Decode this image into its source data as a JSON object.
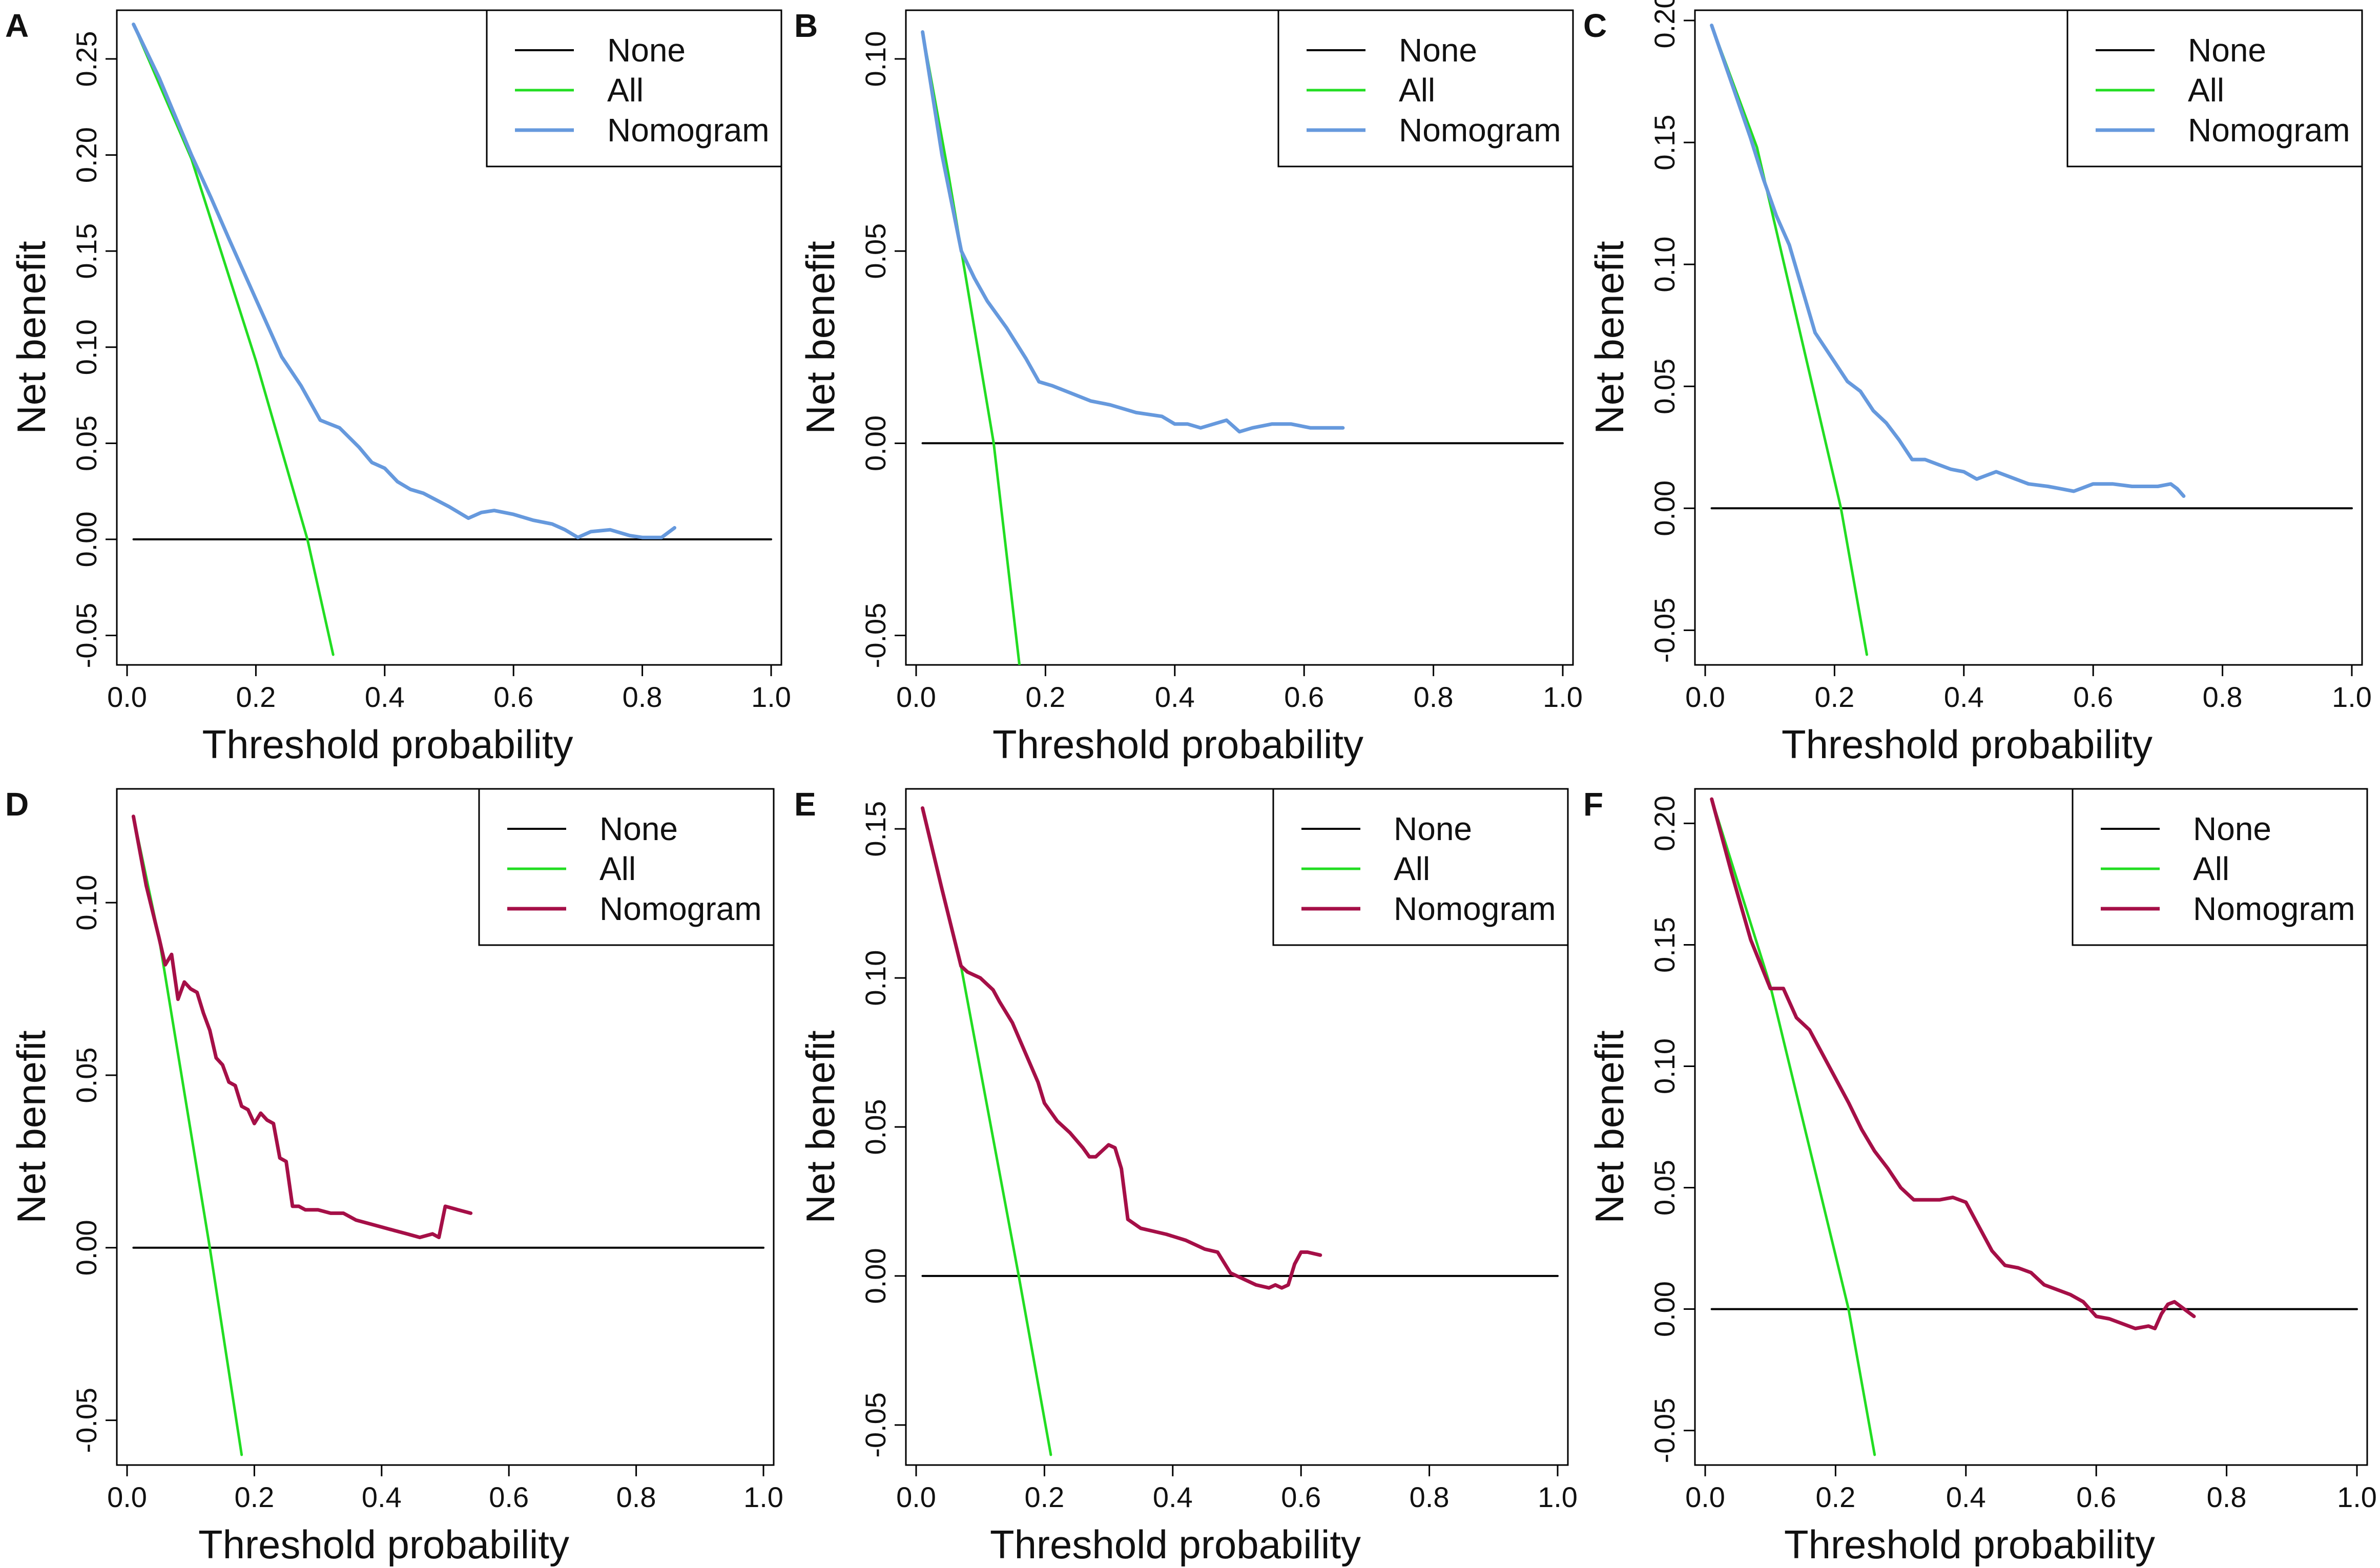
{
  "figure": {
    "none_color": "#000000",
    "all_color": "#22dd22",
    "blue_color": "#6699dd",
    "crimson_color": "#a50f47"
  },
  "chart_data": [
    {
      "panel": "A",
      "type": "line",
      "xlabel": "Threshold probability",
      "ylabel": "Net benefit",
      "xlim": [
        0,
        1
      ],
      "ylim": [
        -0.06,
        0.27
      ],
      "xticks": [
        "0.0",
        "0.2",
        "0.4",
        "0.6",
        "0.8",
        "1.0"
      ],
      "xtick_values": [
        0,
        0.2,
        0.4,
        0.6,
        0.8,
        1.0
      ],
      "yticks": [
        "-0.05",
        "0.00",
        "0.05",
        "0.10",
        "0.15",
        "0.20",
        "0.25"
      ],
      "ytick_values": [
        -0.05,
        0,
        0.05,
        0.1,
        0.15,
        0.2,
        0.25
      ],
      "legend": [
        "None",
        "All",
        "Nomogram"
      ],
      "legend_position": "top-right",
      "nomogram_color": "blue",
      "series": [
        {
          "name": "None",
          "x": [
            0.01,
            1.0
          ],
          "y": [
            0,
            0
          ]
        },
        {
          "name": "All",
          "x": [
            0.01,
            0.1,
            0.2,
            0.28,
            0.32
          ],
          "y": [
            0.268,
            0.198,
            0.093,
            0,
            -0.06
          ]
        },
        {
          "name": "Nomogram",
          "x": [
            0.01,
            0.05,
            0.1,
            0.13,
            0.16,
            0.2,
            0.24,
            0.27,
            0.3,
            0.33,
            0.36,
            0.38,
            0.4,
            0.42,
            0.44,
            0.46,
            0.5,
            0.53,
            0.55,
            0.57,
            0.6,
            0.63,
            0.66,
            0.68,
            0.7,
            0.72,
            0.75,
            0.78,
            0.8,
            0.83,
            0.85
          ],
          "y": [
            0.268,
            0.24,
            0.2,
            0.178,
            0.155,
            0.125,
            0.095,
            0.08,
            0.062,
            0.058,
            0.048,
            0.04,
            0.037,
            0.03,
            0.026,
            0.024,
            0.017,
            0.011,
            0.014,
            0.015,
            0.013,
            0.01,
            0.008,
            0.005,
            0.001,
            0.004,
            0.005,
            0.002,
            0.001,
            0.001,
            0.006
          ]
        }
      ]
    },
    {
      "panel": "B",
      "type": "line",
      "xlabel": "Threshold probability",
      "ylabel": "Net benefit",
      "xlim": [
        0,
        1
      ],
      "ylim": [
        -0.055,
        0.11
      ],
      "xticks": [
        "0.0",
        "0.2",
        "0.4",
        "0.6",
        "0.8",
        "1.0"
      ],
      "xtick_values": [
        0,
        0.2,
        0.4,
        0.6,
        0.8,
        1.0
      ],
      "yticks": [
        "-0.05",
        "0.00",
        "0.05",
        "0.10"
      ],
      "ytick_values": [
        -0.05,
        0,
        0.05,
        0.1
      ],
      "legend": [
        "None",
        "All",
        "Nomogram"
      ],
      "legend_position": "top-right",
      "nomogram_color": "blue",
      "series": [
        {
          "name": "None",
          "x": [
            0.01,
            1.0
          ],
          "y": [
            0,
            0
          ]
        },
        {
          "name": "All",
          "x": [
            0.01,
            0.05,
            0.12,
            0.16
          ],
          "y": [
            0.107,
            0.07,
            0,
            -0.058
          ]
        },
        {
          "name": "Nomogram",
          "x": [
            0.01,
            0.04,
            0.07,
            0.09,
            0.11,
            0.14,
            0.17,
            0.19,
            0.21,
            0.24,
            0.27,
            0.3,
            0.34,
            0.38,
            0.4,
            0.42,
            0.44,
            0.46,
            0.48,
            0.5,
            0.52,
            0.55,
            0.58,
            0.61,
            0.64,
            0.66
          ],
          "y": [
            0.107,
            0.075,
            0.05,
            0.043,
            0.037,
            0.03,
            0.022,
            0.016,
            0.015,
            0.013,
            0.011,
            0.01,
            0.008,
            0.007,
            0.005,
            0.005,
            0.004,
            0.005,
            0.006,
            0.003,
            0.004,
            0.005,
            0.005,
            0.004,
            0.004,
            0.004
          ]
        }
      ]
    },
    {
      "panel": "C",
      "type": "line",
      "xlabel": "Threshold probability",
      "ylabel": "Net benefit",
      "xlim": [
        0,
        1
      ],
      "ylim": [
        -0.06,
        0.2
      ],
      "xticks": [
        "0.0",
        "0.2",
        "0.4",
        "0.6",
        "0.8",
        "1.0"
      ],
      "xtick_values": [
        0,
        0.2,
        0.4,
        0.6,
        0.8,
        1.0
      ],
      "yticks": [
        "-0.05",
        "0.00",
        "0.05",
        "0.10",
        "0.15",
        "0.20"
      ],
      "ytick_values": [
        -0.05,
        0,
        0.05,
        0.1,
        0.15,
        0.2
      ],
      "legend": [
        "None",
        "All",
        "Nomogram"
      ],
      "legend_position": "top-right",
      "nomogram_color": "blue",
      "series": [
        {
          "name": "None",
          "x": [
            0.01,
            1.0
          ],
          "y": [
            0,
            0
          ]
        },
        {
          "name": "All",
          "x": [
            0.01,
            0.08,
            0.21,
            0.25
          ],
          "y": [
            0.198,
            0.148,
            0,
            -0.06
          ]
        },
        {
          "name": "Nomogram",
          "x": [
            0.01,
            0.04,
            0.07,
            0.09,
            0.11,
            0.13,
            0.15,
            0.17,
            0.2,
            0.22,
            0.24,
            0.26,
            0.28,
            0.3,
            0.32,
            0.34,
            0.36,
            0.38,
            0.4,
            0.42,
            0.43,
            0.45,
            0.48,
            0.5,
            0.53,
            0.55,
            0.57,
            0.6,
            0.63,
            0.66,
            0.68,
            0.7,
            0.72,
            0.73,
            0.74
          ],
          "y": [
            0.198,
            0.175,
            0.152,
            0.135,
            0.12,
            0.108,
            0.09,
            0.072,
            0.06,
            0.052,
            0.048,
            0.04,
            0.035,
            0.028,
            0.02,
            0.02,
            0.018,
            0.016,
            0.015,
            0.012,
            0.013,
            0.015,
            0.012,
            0.01,
            0.009,
            0.008,
            0.007,
            0.01,
            0.01,
            0.009,
            0.009,
            0.009,
            0.01,
            0.008,
            0.005
          ]
        }
      ]
    },
    {
      "panel": "D",
      "type": "line",
      "xlabel": "Threshold probability",
      "ylabel": "Net benefit",
      "xlim": [
        0,
        1
      ],
      "ylim": [
        -0.06,
        0.13
      ],
      "xticks": [
        "0.0",
        "0.2",
        "0.4",
        "0.6",
        "0.8",
        "1.0"
      ],
      "xtick_values": [
        0,
        0.2,
        0.4,
        0.6,
        0.8,
        1.0
      ],
      "yticks": [
        "-0.05",
        "0.00",
        "0.05",
        "0.10"
      ],
      "ytick_values": [
        -0.05,
        0,
        0.05,
        0.1
      ],
      "legend": [
        "None",
        "All",
        "Nomogram"
      ],
      "legend_position": "top-right",
      "nomogram_color": "crimson",
      "series": [
        {
          "name": "None",
          "x": [
            0.01,
            1.0
          ],
          "y": [
            0,
            0
          ]
        },
        {
          "name": "All",
          "x": [
            0.01,
            0.05,
            0.13,
            0.18
          ],
          "y": [
            0.125,
            0.09,
            0,
            -0.06
          ]
        },
        {
          "name": "Nomogram",
          "x": [
            0.01,
            0.03,
            0.05,
            0.06,
            0.07,
            0.08,
            0.09,
            0.1,
            0.11,
            0.12,
            0.13,
            0.14,
            0.15,
            0.16,
            0.17,
            0.18,
            0.19,
            0.2,
            0.21,
            0.22,
            0.23,
            0.24,
            0.25,
            0.26,
            0.27,
            0.28,
            0.3,
            0.32,
            0.34,
            0.36,
            0.38,
            0.4,
            0.42,
            0.44,
            0.46,
            0.48,
            0.49,
            0.5,
            0.52,
            0.54
          ],
          "y": [
            0.125,
            0.105,
            0.09,
            0.082,
            0.085,
            0.072,
            0.077,
            0.075,
            0.074,
            0.068,
            0.063,
            0.055,
            0.053,
            0.048,
            0.047,
            0.041,
            0.04,
            0.036,
            0.039,
            0.037,
            0.036,
            0.026,
            0.025,
            0.012,
            0.012,
            0.011,
            0.011,
            0.01,
            0.01,
            0.008,
            0.007,
            0.006,
            0.005,
            0.004,
            0.003,
            0.004,
            0.003,
            0.012,
            0.011,
            0.01
          ]
        }
      ]
    },
    {
      "panel": "E",
      "type": "line",
      "xlabel": "Threshold probability",
      "ylabel": "Net benefit",
      "xlim": [
        0,
        1
      ],
      "ylim": [
        -0.06,
        0.16
      ],
      "xticks": [
        "0.0",
        "0.2",
        "0.4",
        "0.6",
        "0.8",
        "1.0"
      ],
      "xtick_values": [
        0,
        0.2,
        0.4,
        0.6,
        0.8,
        1.0
      ],
      "yticks": [
        "-0.05",
        "0.00",
        "0.05",
        "0.10",
        "0.15"
      ],
      "ytick_values": [
        -0.05,
        0,
        0.05,
        0.1,
        0.15
      ],
      "legend": [
        "None",
        "All",
        "Nomogram"
      ],
      "legend_position": "top-right",
      "nomogram_color": "crimson",
      "series": [
        {
          "name": "None",
          "x": [
            0.01,
            1.0
          ],
          "y": [
            0,
            0
          ]
        },
        {
          "name": "All",
          "x": [
            0.01,
            0.07,
            0.16,
            0.21
          ],
          "y": [
            0.157,
            0.104,
            0,
            -0.06
          ]
        },
        {
          "name": "Nomogram",
          "x": [
            0.01,
            0.04,
            0.07,
            0.08,
            0.1,
            0.12,
            0.13,
            0.15,
            0.17,
            0.19,
            0.2,
            0.22,
            0.24,
            0.26,
            0.27,
            0.28,
            0.29,
            0.3,
            0.31,
            0.32,
            0.33,
            0.35,
            0.37,
            0.39,
            0.42,
            0.45,
            0.47,
            0.49,
            0.51,
            0.53,
            0.55,
            0.56,
            0.57,
            0.58,
            0.59,
            0.6,
            0.61,
            0.63
          ],
          "y": [
            0.157,
            0.13,
            0.104,
            0.102,
            0.1,
            0.096,
            0.092,
            0.085,
            0.075,
            0.065,
            0.058,
            0.052,
            0.048,
            0.043,
            0.04,
            0.04,
            0.042,
            0.044,
            0.043,
            0.036,
            0.019,
            0.016,
            0.015,
            0.014,
            0.012,
            0.009,
            0.008,
            0.001,
            -0.001,
            -0.003,
            -0.004,
            -0.003,
            -0.004,
            -0.003,
            0.004,
            0.008,
            0.008,
            0.007
          ]
        }
      ]
    },
    {
      "panel": "F",
      "type": "line",
      "xlabel": "Threshold probability",
      "ylabel": "Net benefit",
      "xlim": [
        0,
        1
      ],
      "ylim": [
        -0.06,
        0.21
      ],
      "xticks": [
        "0.0",
        "0.2",
        "0.4",
        "0.6",
        "0.8",
        "1.0"
      ],
      "xtick_values": [
        0,
        0.2,
        0.4,
        0.6,
        0.8,
        1.0
      ],
      "yticks": [
        "-0.05",
        "0.00",
        "0.05",
        "0.10",
        "0.15",
        "0.20"
      ],
      "ytick_values": [
        -0.05,
        0,
        0.05,
        0.1,
        0.15,
        0.2
      ],
      "legend": [
        "None",
        "All",
        "Nomogram"
      ],
      "legend_position": "top-right",
      "nomogram_color": "crimson",
      "series": [
        {
          "name": "None",
          "x": [
            0.01,
            1.0
          ],
          "y": [
            0,
            0
          ]
        },
        {
          "name": "All",
          "x": [
            0.01,
            0.1,
            0.22,
            0.26
          ],
          "y": [
            0.21,
            0.133,
            0,
            -0.06
          ]
        },
        {
          "name": "Nomogram",
          "x": [
            0.01,
            0.04,
            0.07,
            0.1,
            0.12,
            0.14,
            0.16,
            0.18,
            0.2,
            0.22,
            0.24,
            0.26,
            0.28,
            0.3,
            0.32,
            0.34,
            0.36,
            0.38,
            0.4,
            0.42,
            0.44,
            0.46,
            0.48,
            0.5,
            0.52,
            0.54,
            0.56,
            0.58,
            0.6,
            0.62,
            0.64,
            0.66,
            0.68,
            0.69,
            0.7,
            0.71,
            0.72,
            0.73,
            0.75
          ],
          "y": [
            0.21,
            0.18,
            0.152,
            0.132,
            0.132,
            0.12,
            0.115,
            0.105,
            0.095,
            0.085,
            0.074,
            0.065,
            0.058,
            0.05,
            0.045,
            0.045,
            0.045,
            0.046,
            0.044,
            0.034,
            0.024,
            0.018,
            0.017,
            0.015,
            0.01,
            0.008,
            0.006,
            0.003,
            -0.003,
            -0.004,
            -0.006,
            -0.008,
            -0.007,
            -0.008,
            -0.002,
            0.002,
            0.003,
            0.001,
            -0.003
          ]
        }
      ]
    }
  ]
}
